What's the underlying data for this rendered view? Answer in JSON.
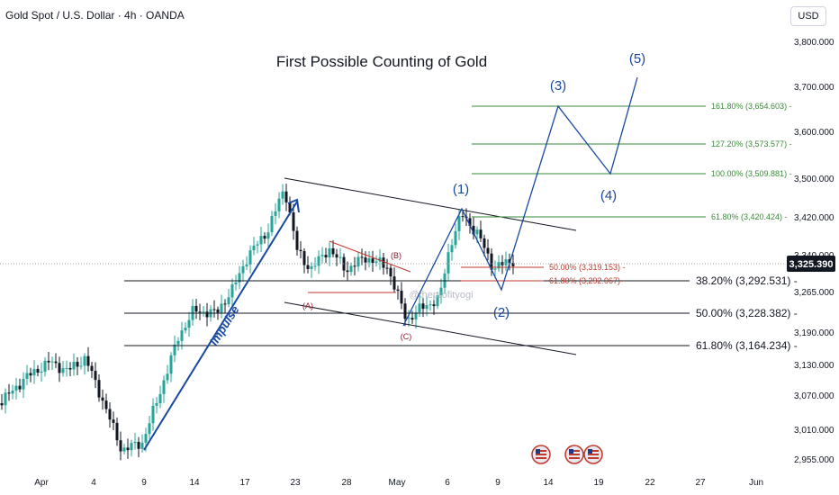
{
  "header": {
    "symbol_info": "Gold Spot / U.S. Dollar · 4h · OANDA",
    "currency": "USD"
  },
  "chart_data": {
    "type": "candlestick",
    "title": "First Possible Counting of Gold",
    "watermark": "@theprofityogi",
    "y_ticks": [
      "3,800.000",
      "3,700.000",
      "3,600.000",
      "3,500.000",
      "3,420.000",
      "3,340.000",
      "3,265.000",
      "3,190.000",
      "3,130.000",
      "3,070.000",
      "3,010.000",
      "2,955.000"
    ],
    "x_ticks": [
      "Apr",
      "4",
      "9",
      "14",
      "17",
      "23",
      "28",
      "May",
      "6",
      "9",
      "14",
      "19",
      "22",
      "27",
      "Jun"
    ],
    "last_price": "3,325.390",
    "colors": {
      "up": "#26a69a",
      "down": "#131722",
      "wave": "#1848a0",
      "fib_green": "#3a8a3a",
      "fib_red": "#c0392b",
      "label_red": "#8b1a2c",
      "price_tag": "#131722"
    },
    "fib_right": [
      {
        "label": "161.80% (3,654.603)",
        "value": 3654.603
      },
      {
        "label": "127.20% (3,573.577)",
        "value": 3573.577
      },
      {
        "label": "100.00% (3,509.881)",
        "value": 3509.881
      },
      {
        "label": "61.80% (3,420.424)",
        "value": 3420.424
      }
    ],
    "fib_retrace_small": [
      {
        "label": "50.00% (3,319.153)",
        "value": 3319.153
      },
      {
        "label": "61.80% (3,292.067)",
        "value": 3292.067
      }
    ],
    "fib_retrace_large": [
      {
        "label": "38.20% (3,292.531)",
        "value": 3292.531
      },
      {
        "label": "50.00% (3,228.382)",
        "value": 3228.382
      },
      {
        "label": "61.80% (3,164.234)",
        "value": 3164.234
      }
    ],
    "wave_labels": [
      "(1)",
      "(2)",
      "(3)",
      "(4)",
      "(5)"
    ],
    "corrective_labels": [
      "(A)",
      "(B)",
      "(C)"
    ],
    "impulse_label": "impulse"
  }
}
